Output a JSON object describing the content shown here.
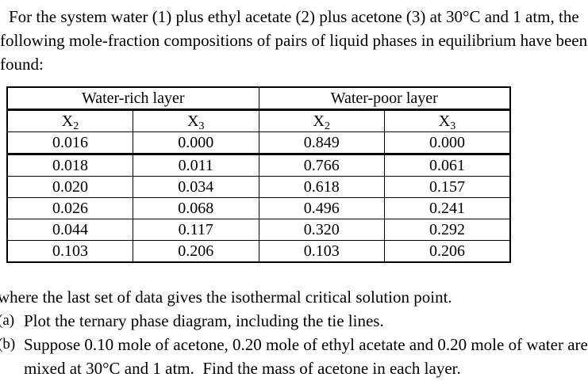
{
  "document": {
    "intro": {
      "lines": [
        "For the system water (1) plus ethyl acetate (2) plus acetone (3) at 30°C and 1 atm, the",
        "following mole-fraction compositions of pairs of liquid phases in equilibrium have been",
        "found:"
      ]
    },
    "table": {
      "group_headers": [
        "Water-rich layer",
        "Water-poor layer"
      ],
      "col_headers": [
        {
          "base": "X",
          "sub": "2"
        },
        {
          "base": "X",
          "sub": "3"
        },
        {
          "base": "X",
          "sub": "2"
        },
        {
          "base": "X",
          "sub": "3"
        }
      ],
      "rows": [
        [
          "0.016",
          "0.000",
          "0.849",
          "0.000"
        ],
        [
          "0.018",
          "0.011",
          "0.766",
          "0.061"
        ],
        [
          "0.020",
          "0.034",
          "0.618",
          "0.157"
        ],
        [
          "0.026",
          "0.068",
          "0.496",
          "0.241"
        ],
        [
          "0.044",
          "0.117",
          "0.320",
          "0.292"
        ],
        [
          "0.103",
          "0.206",
          "0.103",
          "0.206"
        ]
      ]
    },
    "note": "where the last set of data gives the isothermal critical solution point.",
    "parts": [
      {
        "label": "(a)",
        "lines": [
          "Plot the ternary phase diagram, including the tie lines."
        ]
      },
      {
        "label": "(b)",
        "lines": [
          "Suppose 0.10 mole of acetone, 0.20 mole of ethyl acetate and 0.20 mole of water are",
          "mixed at 30°C and 1 atm.  Find the mass of acetone in each layer."
        ]
      }
    ]
  }
}
